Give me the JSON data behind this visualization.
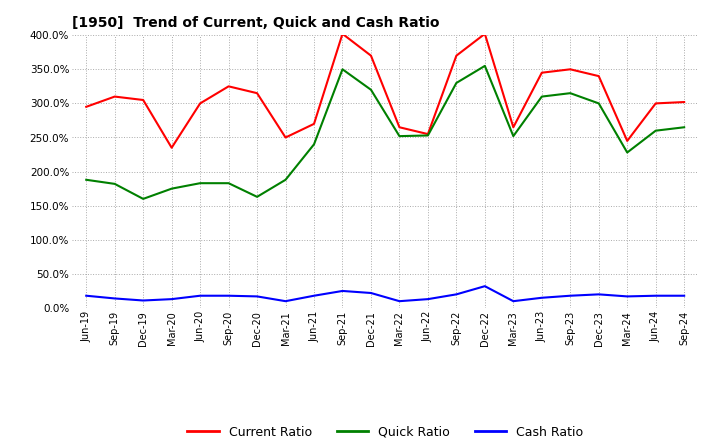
{
  "title": "[1950]  Trend of Current, Quick and Cash Ratio",
  "labels": [
    "Jun-19",
    "Sep-19",
    "Dec-19",
    "Mar-20",
    "Jun-20",
    "Sep-20",
    "Dec-20",
    "Mar-21",
    "Jun-21",
    "Sep-21",
    "Dec-21",
    "Mar-22",
    "Jun-22",
    "Sep-22",
    "Dec-22",
    "Mar-23",
    "Jun-23",
    "Sep-23",
    "Dec-23",
    "Mar-24",
    "Jun-24",
    "Sep-24"
  ],
  "current_ratio": [
    295,
    310,
    305,
    235,
    300,
    325,
    315,
    250,
    270,
    402,
    370,
    265,
    255,
    370,
    402,
    265,
    345,
    350,
    340,
    245,
    300,
    302
  ],
  "quick_ratio": [
    188,
    182,
    160,
    175,
    183,
    183,
    163,
    188,
    240,
    350,
    320,
    252,
    253,
    330,
    355,
    252,
    310,
    315,
    300,
    228,
    260,
    265
  ],
  "cash_ratio": [
    18,
    14,
    11,
    13,
    18,
    18,
    17,
    10,
    18,
    25,
    22,
    10,
    13,
    20,
    32,
    10,
    15,
    18,
    20,
    17,
    18,
    18
  ],
  "current_color": "#FF0000",
  "quick_color": "#008000",
  "cash_color": "#0000FF",
  "ylim": [
    0,
    400
  ],
  "yticks": [
    0,
    50,
    100,
    150,
    200,
    250,
    300,
    350,
    400
  ],
  "background_color": "#FFFFFF",
  "grid_color": "#AAAAAA",
  "legend_labels": [
    "Current Ratio",
    "Quick Ratio",
    "Cash Ratio"
  ]
}
